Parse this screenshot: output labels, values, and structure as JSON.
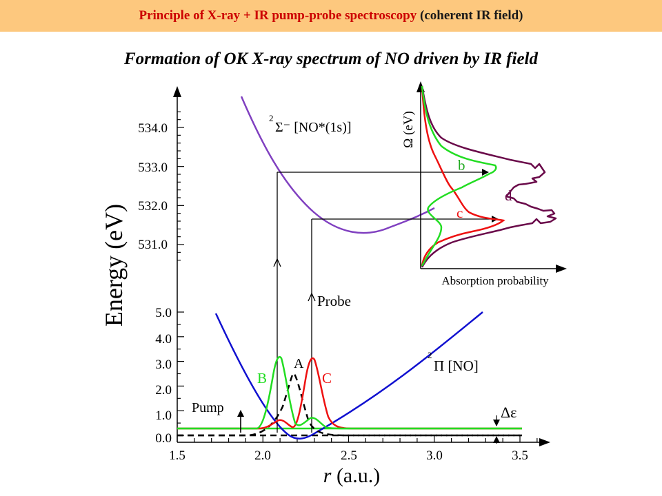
{
  "header": {
    "title_red": "Principle of X-ray + IR pump-probe spectroscopy",
    "title_dark": "(coherent IR field)",
    "subtitle": "Formation of OK  X-ray spectrum of NO driven by IR field"
  },
  "figure": {
    "y_axis_label": "Energy (eV)",
    "x_axis_label_var": "r",
    "x_axis_label_unit": " (a.u.)",
    "upper_ticks": [
      "534.0",
      "533.0",
      "532.0",
      "531.0"
    ],
    "lower_ticks": [
      "5.0",
      "4.0",
      "3.0",
      "2.0",
      "1.0",
      "0.0"
    ],
    "x_ticks": [
      "1.5",
      "2.0",
      "2.5",
      "3.0",
      "3.5"
    ],
    "excited_state_label": "Σ⁻ [NO*(1s)]",
    "ground_state_label": "Π [NO]",
    "pump_label": "Pump",
    "probe_label": "Probe",
    "delta_label": "Δε",
    "wavepacket_labels": {
      "A": "A",
      "B": "B",
      "C": "C"
    },
    "inset": {
      "y_label": "Ω (eV)",
      "x_label": "Absorption probability",
      "curve_labels": {
        "b": "b",
        "c": "c",
        "d": "d"
      }
    },
    "colors": {
      "excited_curve": "#8040c0",
      "ground_curve": "#1010d0",
      "packet_B": "#22dd22",
      "packet_C": "#ee1111",
      "packet_A": "#000000",
      "spectrum_d": "#6a0a4a"
    }
  }
}
